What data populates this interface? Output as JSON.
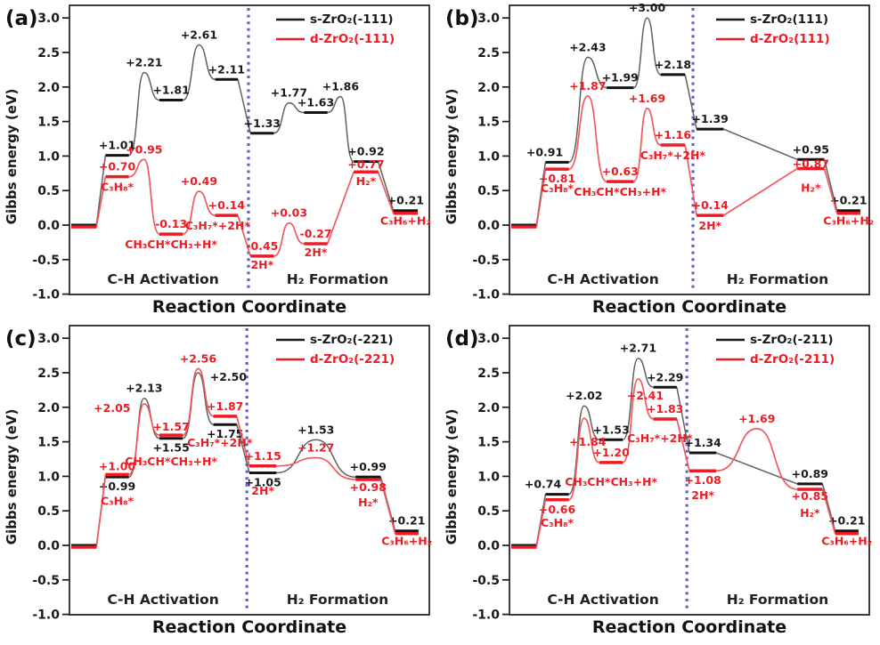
{
  "chart_data": {
    "type": "line",
    "subtype": "reaction-energy-diagram",
    "axis": {
      "ylabel": "Gibbs energy (eV)",
      "xlabel": "Reaction Coordinate",
      "yticks": [
        3.0,
        2.5,
        2.0,
        1.5,
        1.0,
        0.5,
        0.0,
        -0.5,
        -1.0
      ],
      "ylim": [
        -1.0,
        3.2
      ],
      "grid": false,
      "regions": [
        "C-H Activation",
        "H₂ Formation"
      ]
    },
    "colors": {
      "axis": "#1a1a1a",
      "sBar": "#141414",
      "sCurve": "#606060",
      "sLabel": "#1a1a1a",
      "dBar": "#ec1c24",
      "dCurve": "#f2595e",
      "dLabel": "#ec1c24",
      "separator": "#5f64c9"
    },
    "panels": [
      {
        "id": "a",
        "letter": "(a)",
        "legend": [
          {
            "label": "s-ZrO₂(-111)",
            "series": "s"
          },
          {
            "label": "d-ZrO₂(-111)",
            "series": "d"
          }
        ],
        "separator": 0.4975,
        "stations": [
          [
            0.005,
            0.075
          ],
          [
            0.1,
            0.165
          ],
          [
            0.25,
            0.315
          ],
          [
            0.405,
            0.468
          ],
          [
            0.503,
            0.568
          ],
          [
            0.652,
            0.717
          ],
          [
            0.79,
            0.858
          ],
          [
            0.9,
            0.968
          ]
        ],
        "series": [
          {
            "key": "s",
            "levels": [
              {
                "e": 0.0
              },
              {
                "e": 1.01,
                "label": "+1.01"
              },
              {
                "e": 1.81,
                "label": "+1.81"
              },
              {
                "e": 2.11,
                "label": "+2.11"
              },
              {
                "e": 1.33,
                "label": "+1.33"
              },
              {
                "e": 1.63,
                "label": "+1.63"
              },
              {
                "e": 0.92,
                "label": "+0.92"
              },
              {
                "e": 0.21,
                "label": "+0.21"
              }
            ],
            "transitions": [
              {},
              {
                "peak": {
                  "e": 2.21,
                  "label": "+2.21"
                }
              },
              {
                "peak": {
                  "e": 2.61,
                  "label": "+2.61"
                }
              },
              {},
              {
                "peak": {
                  "e": 1.77,
                  "label": "+1.77"
                }
              },
              {
                "peak": {
                  "e": 1.86,
                  "label": "+1.86"
                }
              },
              {}
            ]
          },
          {
            "key": "d",
            "levels": [
              {
                "e": 0.0,
                "yoff": 2
              },
              {
                "e": 0.7,
                "label": "+0.70",
                "species": "C₃H₈*"
              },
              {
                "e": -0.13,
                "label": "-0.13",
                "species": "CH₃CH*CH₃+H*"
              },
              {
                "e": 0.14,
                "label": "+0.14",
                "species": "C₃H₇*+2H*",
                "sdx": -10
              },
              {
                "e": -0.45,
                "label": "-0.45",
                "species": "2H*",
                "sdy": 14
              },
              {
                "e": -0.27,
                "label": "-0.27",
                "species": "2H*",
                "sdy": 14
              },
              {
                "e": 0.77,
                "label": "+0.77",
                "vdy": 3,
                "species": "H₂*",
                "sdy": 15
              },
              {
                "e": 0.21,
                "species": "C₃H₆+H₂",
                "yoff": 3
              }
            ],
            "transitions": [
              {},
              {
                "peak": {
                  "e": 0.95,
                  "label": "+0.95"
                }
              },
              {
                "peak": {
                  "e": 0.49,
                  "label": "+0.49"
                }
              },
              {},
              {
                "peak": {
                  "e": 0.03,
                  "label": "+0.03"
                }
              },
              {},
              {}
            ]
          }
        ]
      },
      {
        "id": "b",
        "letter": "(b)",
        "legend": [
          {
            "label": "s-ZrO₂(111)",
            "series": "s"
          },
          {
            "label": "d-ZrO₂(111)",
            "series": "d"
          }
        ],
        "separator": 0.51,
        "stations": [
          [
            0.005,
            0.075
          ],
          [
            0.1,
            0.165
          ],
          [
            0.27,
            0.345
          ],
          [
            0.42,
            0.488
          ],
          [
            0.52,
            0.595
          ],
          [
            0.8,
            0.875
          ],
          [
            0.91,
            0.975
          ]
        ],
        "series": [
          {
            "key": "s",
            "levels": [
              {
                "e": 0.0
              },
              {
                "e": 0.91,
                "label": "+0.91",
                "ldx": -14
              },
              {
                "e": 1.99,
                "label": "+1.99"
              },
              {
                "e": 2.18,
                "label": "+2.18"
              },
              {
                "e": 1.39,
                "label": "+1.39"
              },
              {
                "e": 0.95,
                "label": "+0.95"
              },
              {
                "e": 0.21,
                "label": "+0.21"
              }
            ],
            "transitions": [
              {},
              {
                "peak": {
                  "e": 2.43,
                  "label": "+2.43"
                }
              },
              {
                "peak": {
                  "e": 3.0,
                  "label": "+3.00"
                }
              },
              {},
              {},
              {}
            ]
          },
          {
            "key": "d",
            "levels": [
              {
                "e": 0.0,
                "yoff": 2
              },
              {
                "e": 0.81,
                "label": "+0.81",
                "below": true,
                "species": "C₃H₈*",
                "sdy": 26
              },
              {
                "e": 0.63,
                "label": "+0.63",
                "species": "CH₃CH*CH₃+H*"
              },
              {
                "e": 1.16,
                "label": "+1.16",
                "species": "C₃H₇*+2H*"
              },
              {
                "e": 0.14,
                "label": "+0.14",
                "species": "2H*"
              },
              {
                "e": 0.87,
                "label": "+0.87",
                "vdy": 10,
                "yoff": 4,
                "species": "H₂*",
                "sdy": 30
              },
              {
                "e": 0.21,
                "species": "C₃H₆+H₂",
                "yoff": 3
              }
            ],
            "transitions": [
              {},
              {
                "peak": {
                  "e": 1.87,
                  "label": "+1.87"
                }
              },
              {
                "peak": {
                  "e": 1.69,
                  "label": "+1.69"
                }
              },
              {},
              {},
              {}
            ]
          }
        ]
      },
      {
        "id": "c",
        "letter": "(c)",
        "legend": [
          {
            "label": "s-ZrO₂(-221)",
            "series": "s"
          },
          {
            "label": "d-ZrO₂(-221)",
            "series": "d"
          }
        ],
        "separator": 0.493,
        "stations": [
          [
            0.005,
            0.075
          ],
          [
            0.1,
            0.165
          ],
          [
            0.25,
            0.315
          ],
          [
            0.4,
            0.465
          ],
          [
            0.5,
            0.575
          ],
          [
            0.795,
            0.865
          ],
          [
            0.905,
            0.97
          ]
        ],
        "series": [
          {
            "key": "s",
            "levels": [
              {
                "e": 0.0
              },
              {
                "e": 0.99,
                "label": "+0.99",
                "below": true
              },
              {
                "e": 1.55,
                "label": "+1.55",
                "below": true
              },
              {
                "e": 1.75,
                "label": "+1.75",
                "below": true
              },
              {
                "e": 1.05,
                "label": "+1.05",
                "below": true
              },
              {
                "e": 0.99,
                "label": "+0.99"
              },
              {
                "e": 0.21,
                "label": "+0.21"
              }
            ],
            "transitions": [
              {},
              {
                "peak": {
                  "e": 2.13,
                  "label": "+2.13"
                }
              },
              {
                "peak": {
                  "e": 2.5,
                  "label": "+2.50",
                  "dx": 34,
                  "dy": 16
                }
              },
              {},
              {
                "peak": {
                  "e": 1.53,
                  "label": "+1.53"
                }
              },
              {}
            ]
          },
          {
            "key": "d",
            "levels": [
              {
                "e": 0.0,
                "yoff": 2
              },
              {
                "e": 1.0,
                "label": "+1.00",
                "yoff": -2,
                "species": "C₃H₈*",
                "sdy": 32
              },
              {
                "e": 1.57,
                "label": "+1.57",
                "yoff": -2,
                "species": "CH₃CH*CH₃+H*",
                "sdy": 32
              },
              {
                "e": 1.87,
                "label": "+1.87",
                "species": "C₃H₇*+2H*",
                "sdy": 34,
                "sdx": -6
              },
              {
                "e": 1.15,
                "label": "+1.15",
                "species": "2H*",
                "sdy": 32
              },
              {
                "e": 0.98,
                "label": "+0.98",
                "below": true,
                "yoff": 2,
                "species": "H₂*",
                "sdy": 32
              },
              {
                "e": 0.21,
                "species": "C₃H₆+H₂",
                "yoff": 3
              }
            ],
            "transitions": [
              {},
              {
                "peak": {
                  "e": 2.05,
                  "label": "+2.05",
                  "dx": -36,
                  "dy": 16
                }
              },
              {
                "peak": {
                  "e": 2.56,
                  "label": "+2.56"
                }
              },
              {},
              {
                "peak": {
                  "e": 1.27,
                  "label": "+1.27"
                }
              },
              {}
            ]
          }
        ]
      },
      {
        "id": "d",
        "letter": "(d)",
        "legend": [
          {
            "label": "s-ZrO₂(-211)",
            "series": "s"
          },
          {
            "label": "d-ZrO₂(-211)",
            "series": "d"
          }
        ],
        "separator": 0.493,
        "stations": [
          [
            0.005,
            0.075
          ],
          [
            0.1,
            0.165
          ],
          [
            0.25,
            0.315
          ],
          [
            0.4,
            0.465
          ],
          [
            0.5,
            0.575
          ],
          [
            0.8,
            0.87
          ],
          [
            0.905,
            0.97
          ]
        ],
        "series": [
          {
            "key": "s",
            "levels": [
              {
                "e": 0.0
              },
              {
                "e": 0.74,
                "label": "+0.74",
                "ldx": -16
              },
              {
                "e": 1.53,
                "label": "+1.53"
              },
              {
                "e": 2.29,
                "label": "+2.29"
              },
              {
                "e": 1.34,
                "label": "+1.34"
              },
              {
                "e": 0.89,
                "label": "+0.89"
              },
              {
                "e": 0.21,
                "label": "+0.21"
              }
            ],
            "transitions": [
              {},
              {
                "peak": {
                  "e": 2.02,
                  "label": "+2.02"
                }
              },
              {
                "peak": {
                  "e": 2.71,
                  "label": "+2.71"
                }
              },
              {},
              {},
              {}
            ]
          },
          {
            "key": "d",
            "levels": [
              {
                "e": 0.0,
                "yoff": 2
              },
              {
                "e": 0.66,
                "label": "+0.66",
                "below": true,
                "species": "C₃H₈*",
                "sdy": 30
              },
              {
                "e": 1.2,
                "label": "+1.20",
                "species": "CH₃CH*CH₃+H*",
                "sdy": 26
              },
              {
                "e": 1.83,
                "label": "+1.83",
                "species": "C₃H₇*+2H*",
                "sdy": 26,
                "sdx": -6
              },
              {
                "e": 1.08,
                "label": "+1.08",
                "below": true,
                "species": "2H*",
                "sdy": 32
              },
              {
                "e": 0.85,
                "label": "+0.85",
                "below": true,
                "yoff": 3,
                "species": "H₂*",
                "sdy": 34
              },
              {
                "e": 0.21,
                "species": "C₃H₆+H₂",
                "yoff": 3
              }
            ],
            "transitions": [
              {},
              {
                "peak": {
                  "e": 1.84,
                  "label": "+1.84",
                  "dx": 4,
                  "dy": 38
                }
              },
              {
                "peak": {
                  "e": 2.41,
                  "label": "+2.41",
                  "dx": 8,
                  "dy": 30
                }
              },
              {},
              {
                "peak": {
                  "e": 1.69,
                  "label": "+1.69"
                }
              },
              {}
            ]
          }
        ]
      }
    ]
  }
}
